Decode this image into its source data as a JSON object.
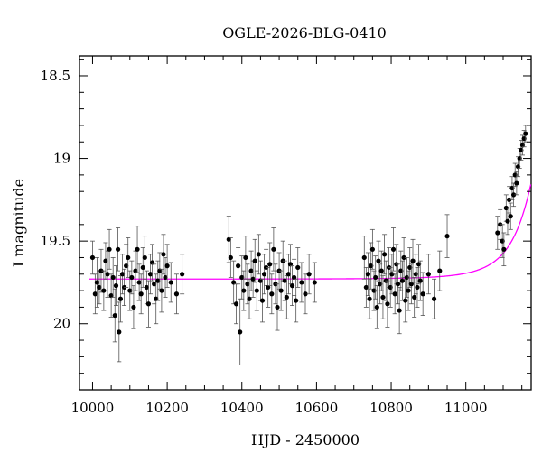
{
  "chart_data": {
    "type": "scatter",
    "title": "OGLE-2026-BLG-0410",
    "xlabel": "HJD - 2450000",
    "ylabel": "I magnitude",
    "xlim": [
      9965,
      11175
    ],
    "ylim": [
      20.4,
      18.38
    ],
    "y_inverted": true,
    "x_ticks": [
      10000,
      10200,
      10400,
      10600,
      10800,
      11000
    ],
    "y_ticks": [
      18.5,
      19,
      19.5,
      20
    ],
    "colors": {
      "data": "#000000",
      "model": "#ff00ff",
      "frame": "#000000"
    },
    "model": {
      "name": "",
      "baseline_mag": 19.73,
      "t0": 11230,
      "tE": 95,
      "u0": 0.36
    },
    "data_points": [
      [
        10000,
        19.6,
        0.1
      ],
      [
        10007,
        19.82,
        0.12
      ],
      [
        10012,
        19.75,
        0.15
      ],
      [
        10018,
        19.78,
        0.1
      ],
      [
        10023,
        19.68,
        0.13
      ],
      [
        10030,
        19.8,
        0.12
      ],
      [
        10035,
        19.62,
        0.11
      ],
      [
        10040,
        19.7,
        0.14
      ],
      [
        10045,
        19.55,
        0.12
      ],
      [
        10050,
        19.83,
        0.13
      ],
      [
        10055,
        19.72,
        0.12
      ],
      [
        10060,
        19.95,
        0.16
      ],
      [
        10063,
        19.77,
        0.12
      ],
      [
        10068,
        19.55,
        0.13
      ],
      [
        10071,
        20.05,
        0.18
      ],
      [
        10075,
        19.85,
        0.14
      ],
      [
        10080,
        19.7,
        0.12
      ],
      [
        10085,
        19.78,
        0.11
      ],
      [
        10090,
        19.65,
        0.13
      ],
      [
        10095,
        19.6,
        0.12
      ],
      [
        10100,
        19.8,
        0.12
      ],
      [
        10105,
        19.72,
        0.1
      ],
      [
        10110,
        19.9,
        0.13
      ],
      [
        10115,
        19.68,
        0.12
      ],
      [
        10120,
        19.55,
        0.14
      ],
      [
        10125,
        19.75,
        0.11
      ],
      [
        10130,
        19.82,
        0.12
      ],
      [
        10135,
        19.66,
        0.12
      ],
      [
        10140,
        19.6,
        0.13
      ],
      [
        10145,
        19.78,
        0.1
      ],
      [
        10150,
        19.88,
        0.14
      ],
      [
        10155,
        19.7,
        0.12
      ],
      [
        10160,
        19.63,
        0.11
      ],
      [
        10165,
        19.76,
        0.12
      ],
      [
        10170,
        19.85,
        0.15
      ],
      [
        10175,
        19.74,
        0.12
      ],
      [
        10180,
        19.68,
        0.11
      ],
      [
        10185,
        19.8,
        0.13
      ],
      [
        10190,
        19.58,
        0.12
      ],
      [
        10195,
        19.72,
        0.12
      ],
      [
        10200,
        19.65,
        0.13
      ],
      [
        10210,
        19.75,
        0.12
      ],
      [
        10225,
        19.82,
        0.12
      ],
      [
        10240,
        19.7,
        0.12
      ],
      [
        10365,
        19.49,
        0.14
      ],
      [
        10370,
        19.6,
        0.12
      ],
      [
        10378,
        19.75,
        0.13
      ],
      [
        10385,
        19.88,
        0.12
      ],
      [
        10390,
        19.65,
        0.11
      ],
      [
        10395,
        20.05,
        0.2
      ],
      [
        10400,
        19.72,
        0.13
      ],
      [
        10405,
        19.8,
        0.12
      ],
      [
        10410,
        19.6,
        0.13
      ],
      [
        10415,
        19.76,
        0.12
      ],
      [
        10420,
        19.85,
        0.12
      ],
      [
        10425,
        19.68,
        0.12
      ],
      [
        10430,
        19.73,
        0.11
      ],
      [
        10435,
        19.62,
        0.13
      ],
      [
        10440,
        19.8,
        0.12
      ],
      [
        10445,
        19.58,
        0.12
      ],
      [
        10450,
        19.74,
        0.12
      ],
      [
        10455,
        19.86,
        0.13
      ],
      [
        10460,
        19.7,
        0.12
      ],
      [
        10465,
        19.66,
        0.11
      ],
      [
        10470,
        19.78,
        0.12
      ],
      [
        10475,
        19.64,
        0.13
      ],
      [
        10480,
        19.82,
        0.12
      ],
      [
        10485,
        19.55,
        0.13
      ],
      [
        10490,
        19.76,
        0.12
      ],
      [
        10495,
        19.9,
        0.14
      ],
      [
        10500,
        19.68,
        0.11
      ],
      [
        10505,
        19.8,
        0.12
      ],
      [
        10510,
        19.62,
        0.12
      ],
      [
        10515,
        19.74,
        0.12
      ],
      [
        10520,
        19.84,
        0.13
      ],
      [
        10525,
        19.7,
        0.12
      ],
      [
        10530,
        19.64,
        0.12
      ],
      [
        10535,
        19.77,
        0.12
      ],
      [
        10540,
        19.72,
        0.11
      ],
      [
        10545,
        19.86,
        0.13
      ],
      [
        10550,
        19.66,
        0.12
      ],
      [
        10560,
        19.75,
        0.12
      ],
      [
        10570,
        19.82,
        0.12
      ],
      [
        10580,
        19.7,
        0.12
      ],
      [
        10595,
        19.75,
        0.12
      ],
      [
        10728,
        19.6,
        0.13
      ],
      [
        10733,
        19.78,
        0.12
      ],
      [
        10738,
        19.7,
        0.13
      ],
      [
        10742,
        19.85,
        0.12
      ],
      [
        10746,
        19.65,
        0.14
      ],
      [
        10750,
        19.55,
        0.12
      ],
      [
        10754,
        19.8,
        0.12
      ],
      [
        10758,
        19.72,
        0.13
      ],
      [
        10762,
        19.9,
        0.13
      ],
      [
        10766,
        19.62,
        0.12
      ],
      [
        10770,
        19.76,
        0.12
      ],
      [
        10774,
        19.68,
        0.12
      ],
      [
        10778,
        19.84,
        0.13
      ],
      [
        10782,
        19.58,
        0.12
      ],
      [
        10786,
        19.74,
        0.12
      ],
      [
        10790,
        19.88,
        0.14
      ],
      [
        10794,
        19.66,
        0.12
      ],
      [
        10798,
        19.78,
        0.12
      ],
      [
        10802,
        19.7,
        0.12
      ],
      [
        10806,
        19.55,
        0.13
      ],
      [
        10810,
        19.82,
        0.12
      ],
      [
        10814,
        19.64,
        0.12
      ],
      [
        10818,
        19.76,
        0.12
      ],
      [
        10822,
        19.92,
        0.14
      ],
      [
        10826,
        19.68,
        0.12
      ],
      [
        10830,
        19.74,
        0.12
      ],
      [
        10834,
        19.6,
        0.12
      ],
      [
        10838,
        19.86,
        0.13
      ],
      [
        10842,
        19.72,
        0.12
      ],
      [
        10846,
        19.8,
        0.12
      ],
      [
        10850,
        19.66,
        0.12
      ],
      [
        10854,
        19.76,
        0.12
      ],
      [
        10858,
        19.62,
        0.13
      ],
      [
        10862,
        19.84,
        0.12
      ],
      [
        10866,
        19.7,
        0.12
      ],
      [
        10870,
        19.78,
        0.12
      ],
      [
        10874,
        19.64,
        0.12
      ],
      [
        10878,
        19.74,
        0.12
      ],
      [
        10885,
        19.82,
        0.13
      ],
      [
        10900,
        19.7,
        0.12
      ],
      [
        10915,
        19.85,
        0.12
      ],
      [
        10930,
        19.68,
        0.12
      ],
      [
        10950,
        19.47,
        0.13
      ],
      [
        11085,
        19.45,
        0.1
      ],
      [
        11092,
        19.4,
        0.09
      ],
      [
        11098,
        19.5,
        0.1
      ],
      [
        11102,
        19.55,
        0.1
      ],
      [
        11108,
        19.3,
        0.08
      ],
      [
        11112,
        19.38,
        0.08
      ],
      [
        11116,
        19.25,
        0.08
      ],
      [
        11120,
        19.35,
        0.08
      ],
      [
        11124,
        19.18,
        0.07
      ],
      [
        11128,
        19.22,
        0.07
      ],
      [
        11132,
        19.1,
        0.07
      ],
      [
        11136,
        19.15,
        0.07
      ],
      [
        11140,
        19.05,
        0.06
      ],
      [
        11144,
        19.0,
        0.06
      ],
      [
        11148,
        18.95,
        0.06
      ],
      [
        11152,
        18.92,
        0.06
      ],
      [
        11156,
        18.88,
        0.05
      ],
      [
        11160,
        18.85,
        0.05
      ]
    ]
  }
}
